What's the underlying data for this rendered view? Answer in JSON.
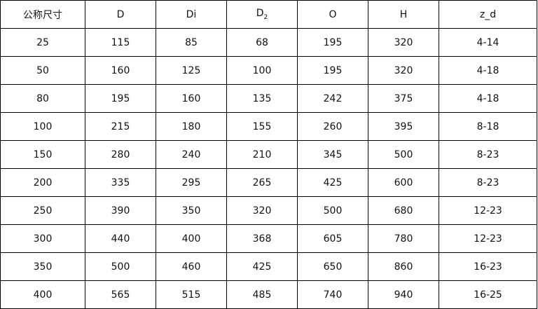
{
  "table": {
    "headers": [
      {
        "text": "公称尺寸",
        "sub": ""
      },
      {
        "text": "D",
        "sub": ""
      },
      {
        "text": "Di",
        "sub": ""
      },
      {
        "text": "D",
        "sub": "2"
      },
      {
        "text": "O",
        "sub": ""
      },
      {
        "text": "H",
        "sub": ""
      },
      {
        "text": "z_d",
        "sub": ""
      }
    ],
    "rows": [
      [
        "25",
        "115",
        "85",
        "68",
        "195",
        "320",
        "4-14"
      ],
      [
        "50",
        "160",
        "125",
        "100",
        "195",
        "320",
        "4-18"
      ],
      [
        "80",
        "195",
        "160",
        "135",
        "242",
        "375",
        "4-18"
      ],
      [
        "100",
        "215",
        "180",
        "155",
        "260",
        "395",
        "8-18"
      ],
      [
        "150",
        "280",
        "240",
        "210",
        "345",
        "500",
        "8-23"
      ],
      [
        "200",
        "335",
        "295",
        "265",
        "425",
        "600",
        "8-23"
      ],
      [
        "250",
        "390",
        "350",
        "320",
        "500",
        "680",
        "12-23"
      ],
      [
        "300",
        "440",
        "400",
        "368",
        "605",
        "780",
        "12-23"
      ],
      [
        "350",
        "500",
        "460",
        "425",
        "650",
        "860",
        "16-23"
      ],
      [
        "400",
        "565",
        "515",
        "485",
        "740",
        "940",
        "16-25"
      ]
    ]
  }
}
